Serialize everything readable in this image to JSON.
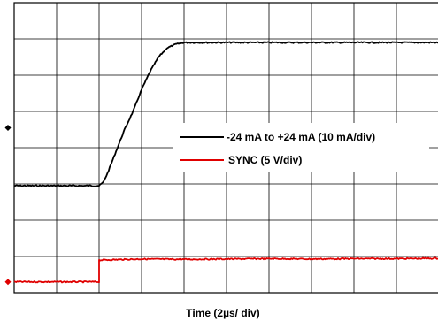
{
  "chart_data": {
    "type": "line",
    "xlabel": "Time (2µs/ div)",
    "ylabel": "",
    "grid": true,
    "x_divisions": 10,
    "y_divisions": 8,
    "xlim": [
      0,
      10
    ],
    "ylim": [
      -4,
      4
    ],
    "legend_position": "center-right",
    "series": [
      {
        "name": "-24 mA to +24 mA (10 mA/div)",
        "color": "#000000",
        "x": [
          0,
          1,
          2,
          2.1,
          2.2,
          2.4,
          2.6,
          2.8,
          3.0,
          3.2,
          3.4,
          3.6,
          3.8,
          4.0,
          4.5,
          5,
          6,
          7,
          8,
          9,
          10
        ],
        "values": [
          -1.05,
          -1.05,
          -1.05,
          -0.95,
          -0.7,
          -0.1,
          0.5,
          1.0,
          1.6,
          2.1,
          2.5,
          2.75,
          2.85,
          2.9,
          2.9,
          2.9,
          2.9,
          2.9,
          2.9,
          2.9,
          2.9
        ]
      },
      {
        "name": "SYNC (5 V/div)",
        "color": "#e00000",
        "x": [
          0,
          1,
          2,
          2.0,
          3,
          4,
          5,
          6,
          7,
          8,
          9,
          10
        ],
        "values": [
          -3.7,
          -3.7,
          -3.7,
          -3.1,
          -3.07,
          -3.08,
          -3.07,
          -3.06,
          -3.07,
          -3.06,
          -3.06,
          -3.05
        ]
      }
    ],
    "markers": [
      {
        "color": "#000000",
        "value": 0.55
      },
      {
        "color": "#e00000",
        "value": -3.7
      }
    ]
  }
}
